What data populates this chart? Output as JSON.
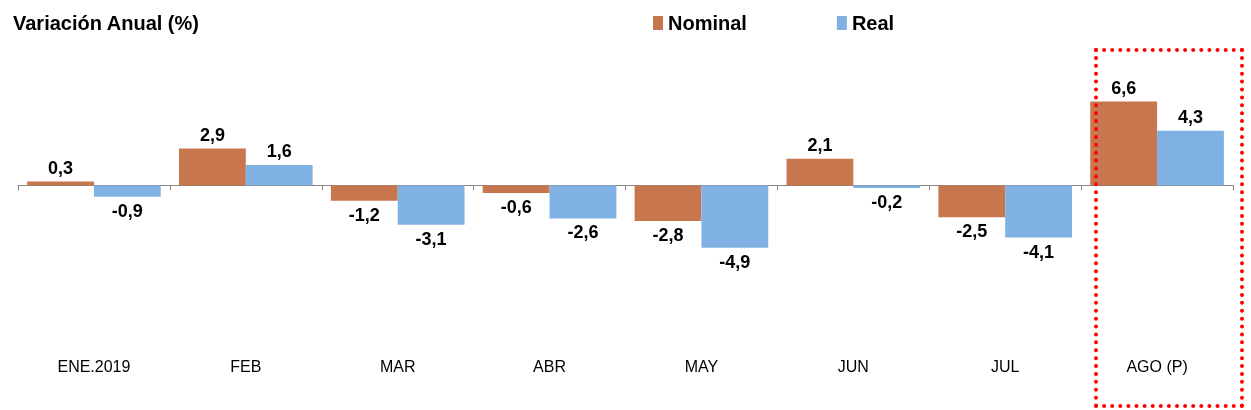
{
  "chart_data": {
    "type": "bar",
    "title": "Variación Anual (%)",
    "categories": [
      "ENE.2019",
      "FEB",
      "MAR",
      "ABR",
      "MAY",
      "JUN",
      "JUL",
      "AGO (P)"
    ],
    "series": [
      {
        "name": "Nominal",
        "color": "#c8764e",
        "values": [
          0.3,
          2.9,
          -1.2,
          -0.6,
          -2.8,
          2.1,
          -2.5,
          6.6
        ],
        "value_labels": [
          "0,3",
          "2,9",
          "-1,2",
          "-0,6",
          "-2,8",
          "2,1",
          "-2,5",
          "6,6"
        ]
      },
      {
        "name": "Real",
        "color": "#7fb2e2",
        "values": [
          -0.9,
          1.6,
          -3.1,
          -2.6,
          -4.9,
          -0.2,
          -4.1,
          4.3
        ],
        "value_labels": [
          "-0,9",
          "1,6",
          "-3,1",
          "-2,6",
          "-4,9",
          "-0,2",
          "-4,1",
          "4,3"
        ]
      }
    ],
    "legend": "top"
  }
}
